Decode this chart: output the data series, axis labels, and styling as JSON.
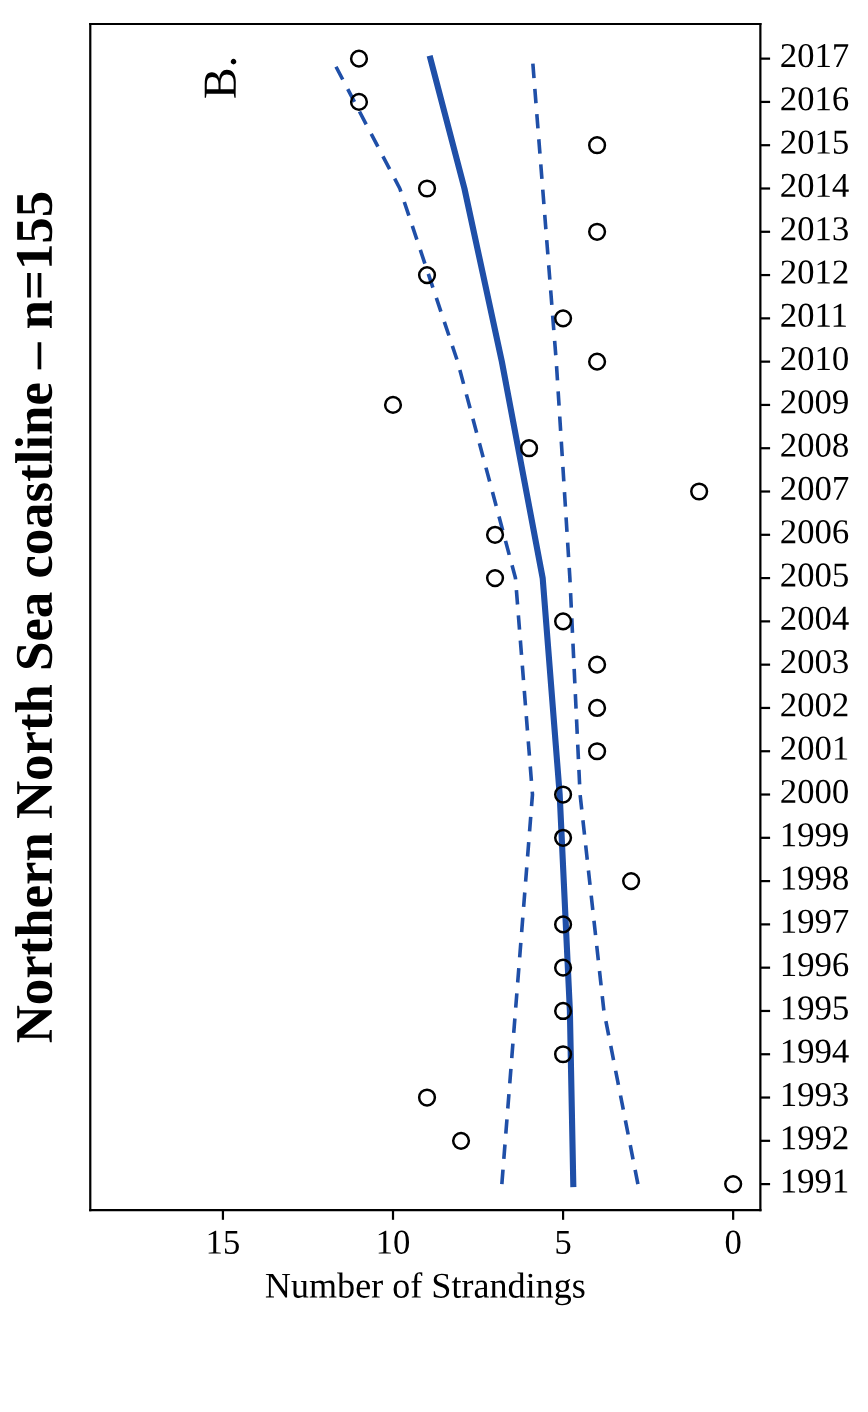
{
  "chart_data": {
    "type": "scatter",
    "title": "Northern North Sea coastline – n=155",
    "xlabel": "Number of Strandings",
    "annotations": [
      "B."
    ],
    "series": [
      {
        "type": "scatter",
        "color": "#000000",
        "marker": "circle",
        "x": [
          0,
          8,
          9,
          5,
          5,
          5,
          5,
          3,
          5,
          5,
          4,
          4,
          4,
          5,
          7,
          7,
          1,
          6,
          10,
          4,
          5,
          9,
          4,
          9,
          4,
          11,
          11
        ],
        "values": [
          1991,
          1992,
          1993,
          1994,
          1995,
          1996,
          1997,
          1998,
          1999,
          2000,
          2001,
          2002,
          2003,
          2004,
          2005,
          2006,
          2007,
          2008,
          2009,
          2010,
          2011,
          2012,
          2013,
          2014,
          2015,
          2016,
          2017
        ]
      },
      {
        "type": "line",
        "color": "#1f4fa8",
        "line_style": "solid",
        "x": [
          4.7,
          4.8,
          5.1,
          5.6,
          6.8,
          7.9,
          8.9
        ],
        "values": [
          1991,
          1995,
          2000,
          2005,
          2010,
          2014,
          2017
        ]
      },
      {
        "type": "line",
        "color": "#1f4fa8",
        "line_style": "dashed",
        "x": [
          2.8,
          3.8,
          4.5,
          4.8,
          5.2,
          5.6,
          5.9
        ],
        "values": [
          1991,
          1995,
          2000,
          2005,
          2010,
          2014,
          2017
        ]
      },
      {
        "type": "line",
        "color": "#1f4fa8",
        "line_style": "dashed",
        "x": [
          6.8,
          6.4,
          5.9,
          6.4,
          8.1,
          9.8,
          11.8
        ],
        "values": [
          1991,
          1995,
          2000,
          2005,
          2010,
          2014,
          2017
        ]
      }
    ],
    "ylim": [
      1990.4,
      2017.8
    ],
    "yticks": [
      1991,
      1992,
      1993,
      1994,
      1995,
      1996,
      1997,
      1998,
      1999,
      2000,
      2001,
      2002,
      2003,
      2004,
      2005,
      2006,
      2007,
      2008,
      2009,
      2010,
      2011,
      2012,
      2013,
      2014,
      2015,
      2016,
      2017
    ],
    "xlim": [
      18.9,
      -0.8
    ],
    "xticks": [
      0,
      5,
      10,
      15
    ],
    "grid": false,
    "legend": false
  }
}
